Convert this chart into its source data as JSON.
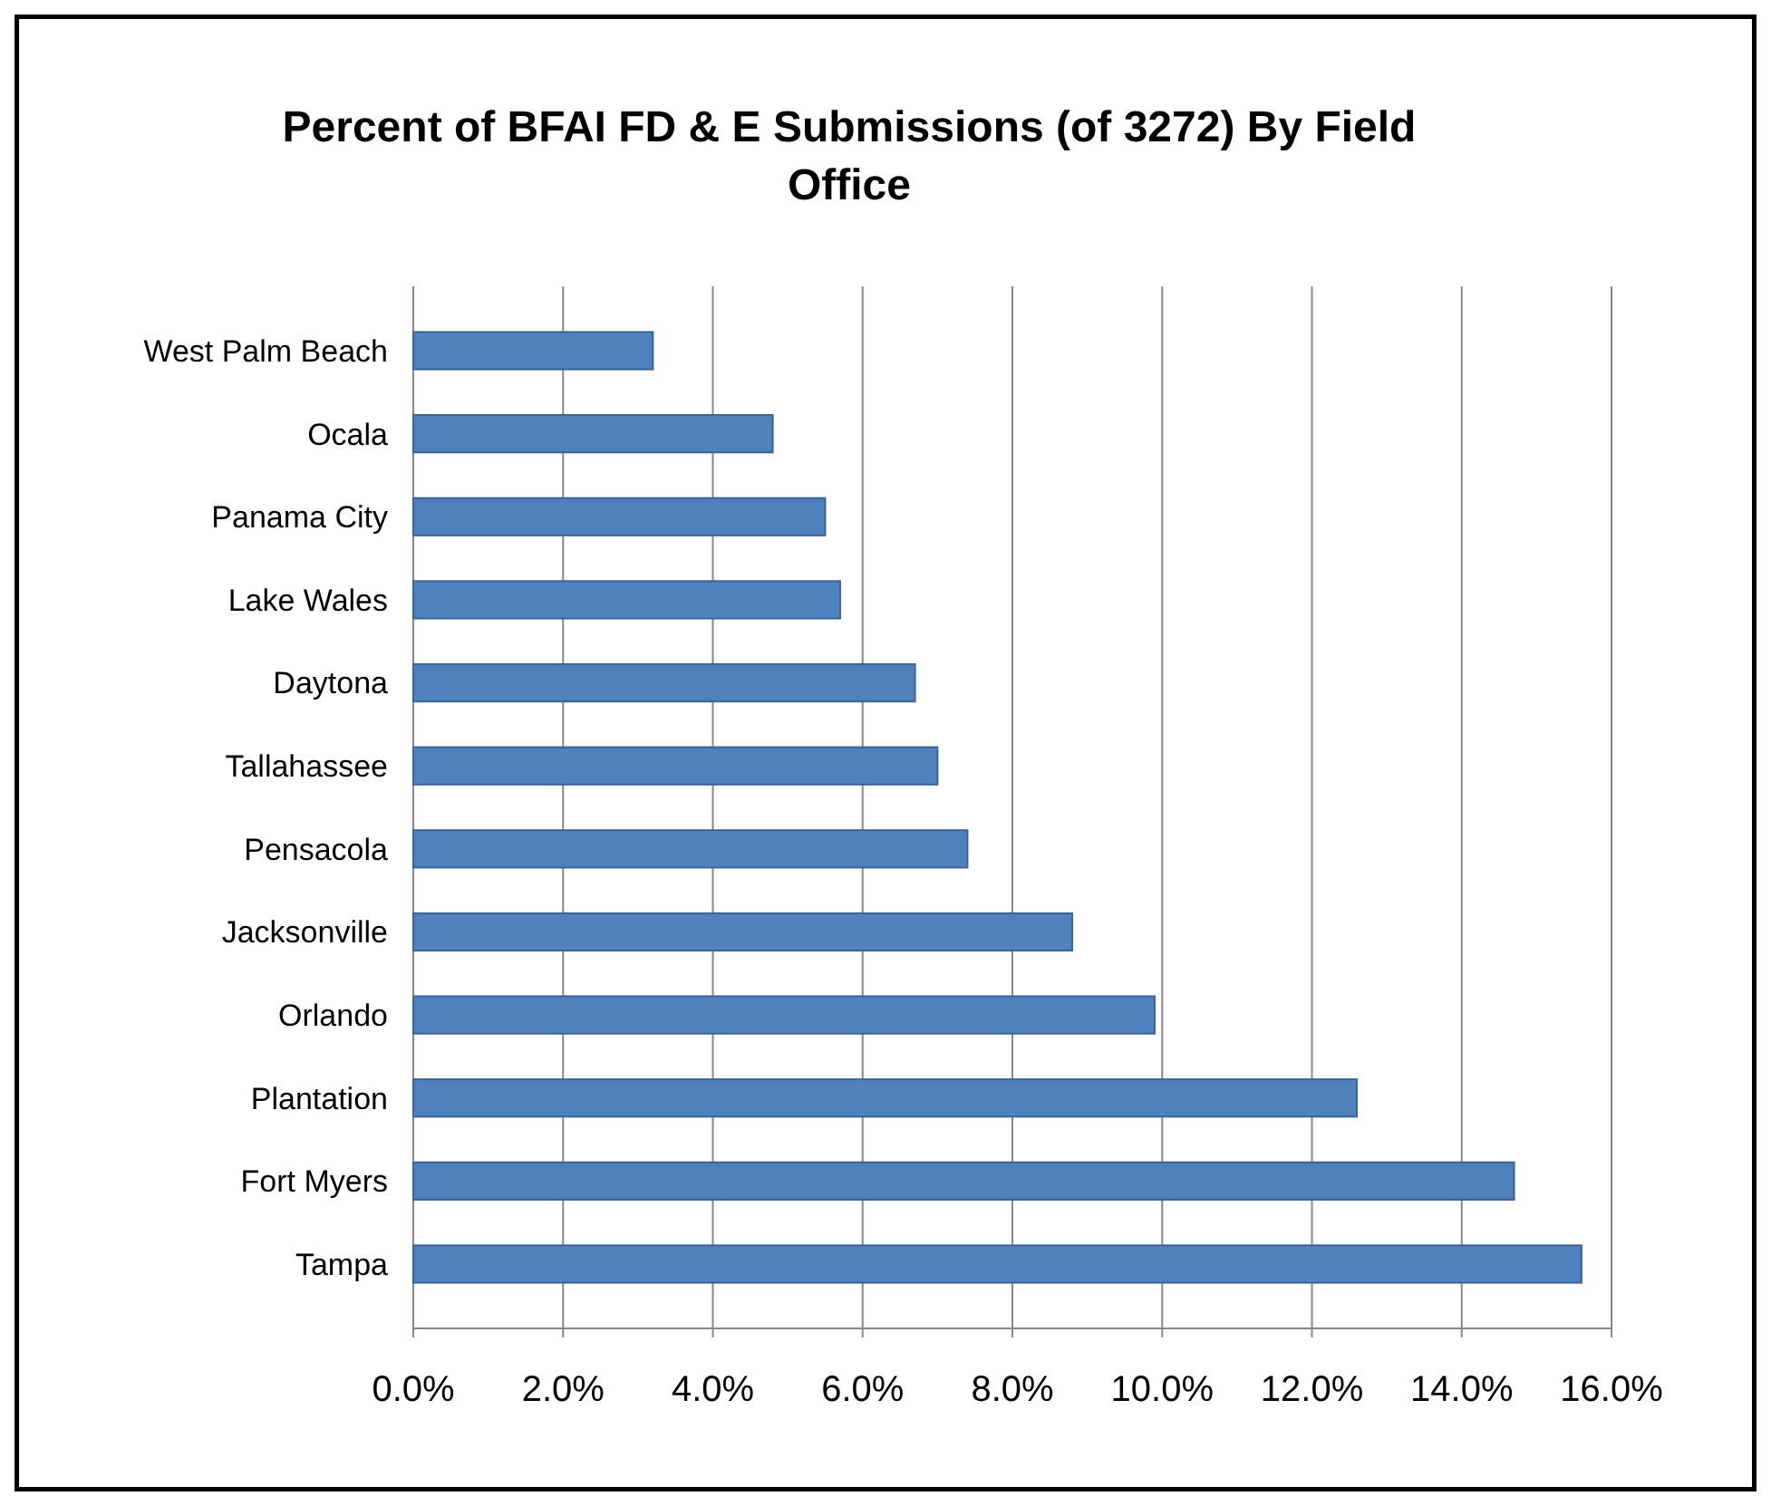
{
  "chart_data": {
    "type": "bar",
    "orientation": "horizontal",
    "title": "Percent of BFAI FD & E Submissions  (of 3272) By Field Office",
    "categories": [
      "West Palm Beach",
      "Ocala",
      "Panama City",
      "Lake Wales",
      "Daytona",
      "Tallahassee",
      "Pensacola",
      "Jacksonville",
      "Orlando",
      "Plantation",
      "Fort Myers",
      "Tampa"
    ],
    "values": [
      3.2,
      4.8,
      5.5,
      5.7,
      6.7,
      7.0,
      7.4,
      8.8,
      9.9,
      12.6,
      14.7,
      15.6
    ],
    "color": "#4f81bd",
    "xlim": [
      0,
      16
    ],
    "xticks": [
      {
        "value": 0,
        "label": "0.0%"
      },
      {
        "value": 2,
        "label": "2.0%"
      },
      {
        "value": 4,
        "label": "4.0%"
      },
      {
        "value": 6,
        "label": "6.0%"
      },
      {
        "value": 8,
        "label": "8.0%"
      },
      {
        "value": 10,
        "label": "10.0%"
      },
      {
        "value": 12,
        "label": "12.0%"
      },
      {
        "value": 14,
        "label": "14.0%"
      },
      {
        "value": 16,
        "label": "16.0%"
      }
    ],
    "grid": "x"
  }
}
